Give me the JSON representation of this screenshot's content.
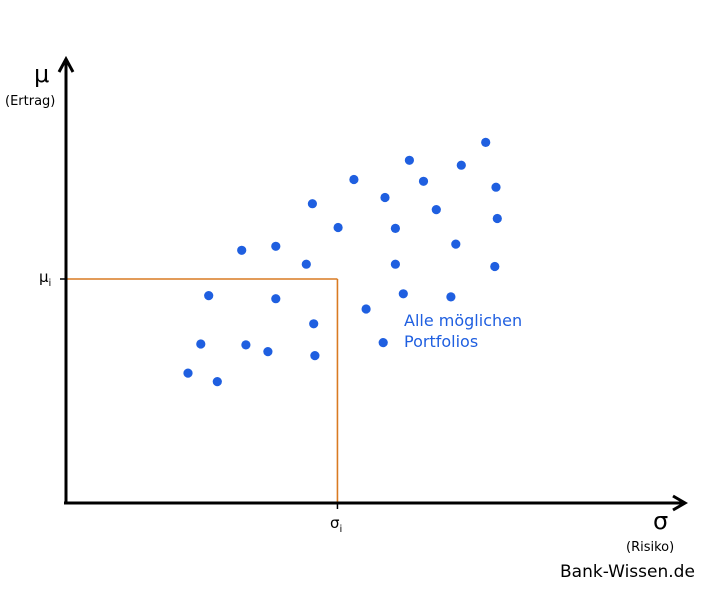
{
  "y_axis": {
    "symbol": "μ",
    "label": "(Ertrag)"
  },
  "x_axis": {
    "symbol": "σ",
    "label": "(Risiko)"
  },
  "marked_point": {
    "mu_label": "μ",
    "mu_sub": "i",
    "sigma_label": "σ",
    "sigma_sub": "i",
    "line_color": "#d97a22"
  },
  "annotation": {
    "line1": "Alle möglichen",
    "line2": "Portfolios"
  },
  "point_color": "#1f5fe0",
  "footer": "Bank-Wissen.de",
  "chart_data": {
    "type": "scatter",
    "xlim": [
      0,
      100
    ],
    "ylim": [
      0,
      100
    ],
    "highlight": {
      "x": 44.5,
      "y": 50
    },
    "points": [
      {
        "x": 20.0,
        "y": 29.0
      },
      {
        "x": 24.8,
        "y": 27.1
      },
      {
        "x": 22.1,
        "y": 35.5
      },
      {
        "x": 23.4,
        "y": 46.3
      },
      {
        "x": 28.8,
        "y": 56.4
      },
      {
        "x": 29.5,
        "y": 35.3
      },
      {
        "x": 33.1,
        "y": 33.8
      },
      {
        "x": 34.4,
        "y": 45.6
      },
      {
        "x": 34.4,
        "y": 57.3
      },
      {
        "x": 39.4,
        "y": 53.3
      },
      {
        "x": 40.4,
        "y": 66.8
      },
      {
        "x": 40.6,
        "y": 40.0
      },
      {
        "x": 40.8,
        "y": 32.9
      },
      {
        "x": 44.6,
        "y": 61.5
      },
      {
        "x": 47.2,
        "y": 72.2
      },
      {
        "x": 49.2,
        "y": 43.3
      },
      {
        "x": 52.0,
        "y": 35.8
      },
      {
        "x": 52.3,
        "y": 68.2
      },
      {
        "x": 54.0,
        "y": 61.3
      },
      {
        "x": 54.0,
        "y": 53.3
      },
      {
        "x": 55.3,
        "y": 46.7
      },
      {
        "x": 56.3,
        "y": 76.5
      },
      {
        "x": 58.6,
        "y": 71.8
      },
      {
        "x": 60.7,
        "y": 65.5
      },
      {
        "x": 63.1,
        "y": 46.0
      },
      {
        "x": 63.9,
        "y": 57.8
      },
      {
        "x": 64.8,
        "y": 75.4
      },
      {
        "x": 68.8,
        "y": 80.5
      },
      {
        "x": 70.3,
        "y": 52.8
      },
      {
        "x": 70.5,
        "y": 70.5
      },
      {
        "x": 70.7,
        "y": 63.5
      }
    ]
  }
}
